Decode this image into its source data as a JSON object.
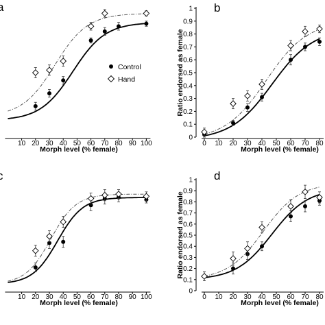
{
  "chart_data": [
    {
      "panel": "a",
      "type": "scatter",
      "xlabel": "Morph level (% female)",
      "ylabel": "",
      "xticks": [
        "10",
        "20",
        "30",
        "40",
        "50",
        "60",
        "70",
        "80",
        "90",
        "100"
      ],
      "yticks": [],
      "xlim": [
        0,
        100
      ],
      "ylim": [
        0,
        1
      ],
      "legend": {
        "placement": "middle-right",
        "entries": [
          "Control",
          "Hand"
        ]
      },
      "series": [
        {
          "name": "Control",
          "marker": "filled-circle",
          "x": [
            20,
            30,
            40,
            60,
            70,
            80,
            100
          ],
          "y": [
            0.24,
            0.34,
            0.44,
            0.75,
            0.82,
            0.86,
            0.88
          ],
          "err": [
            0.03,
            0.03,
            0.03,
            0.02,
            0.03,
            0.03,
            0.02
          ],
          "fit": {
            "min": 0.13,
            "max": 0.89,
            "mid": 47,
            "slope": 0.085
          }
        },
        {
          "name": "Hand",
          "marker": "open-diamond",
          "x": [
            20,
            30,
            40,
            60,
            70,
            100
          ],
          "y": [
            0.5,
            0.52,
            0.59,
            0.86,
            0.96,
            0.96
          ],
          "err": [
            0.04,
            0.04,
            0.04,
            0.03,
            0.03,
            0.02
          ],
          "fit": {
            "min": 0.16,
            "max": 0.96,
            "mid": 34,
            "slope": 0.085
          }
        }
      ]
    },
    {
      "panel": "b",
      "type": "scatter",
      "xlabel": "Morph level (% female)",
      "ylabel": "Ratio endorsed as female",
      "xticks": [
        "0",
        "10",
        "20",
        "30",
        "40",
        "50",
        "60",
        "70",
        "80"
      ],
      "yticks": [
        "0",
        "0.1",
        "0.2",
        "0.3",
        "0.4",
        "0.5",
        "0.6",
        "0.7",
        "0.8",
        "0.9",
        "1"
      ],
      "xlim": [
        0,
        80
      ],
      "ylim": [
        0,
        1
      ],
      "series": [
        {
          "name": "Control",
          "marker": "filled-circle",
          "x": [
            0,
            20,
            30,
            40,
            60,
            70,
            80
          ],
          "y": [
            0.02,
            0.11,
            0.23,
            0.31,
            0.6,
            0.7,
            0.74
          ],
          "err": [
            0.02,
            0.02,
            0.03,
            0.03,
            0.04,
            0.03,
            0.03
          ],
          "fit": {
            "min": -0.02,
            "max": 0.84,
            "mid": 47,
            "slope": 0.07
          }
        },
        {
          "name": "Hand",
          "marker": "open-diamond",
          "x": [
            0,
            20,
            30,
            40,
            60,
            70,
            80
          ],
          "y": [
            0.04,
            0.26,
            0.32,
            0.41,
            0.71,
            0.82,
            0.84
          ],
          "err": [
            0.03,
            0.04,
            0.04,
            0.04,
            0.04,
            0.04,
            0.03
          ],
          "fit": {
            "min": -0.02,
            "max": 0.9,
            "mid": 43,
            "slope": 0.07
          }
        }
      ]
    },
    {
      "panel": "c",
      "type": "scatter",
      "xlabel": "Morph level (% female)",
      "ylabel": "",
      "xticks": [
        "10",
        "20",
        "30",
        "40",
        "50",
        "60",
        "70",
        "80",
        "90",
        "100"
      ],
      "yticks": [],
      "xlim": [
        0,
        100
      ],
      "ylim": [
        0,
        1
      ],
      "series": [
        {
          "name": "Control",
          "marker": "filled-circle",
          "x": [
            20,
            30,
            40,
            60,
            70,
            80,
            100
          ],
          "y": [
            0.21,
            0.43,
            0.44,
            0.77,
            0.83,
            0.84,
            0.82
          ],
          "err": [
            0.04,
            0.05,
            0.05,
            0.05,
            0.05,
            0.04,
            0.03
          ],
          "fit": {
            "min": 0.06,
            "max": 0.84,
            "mid": 36,
            "slope": 0.11
          }
        },
        {
          "name": "Hand",
          "marker": "open-diamond",
          "x": [
            20,
            30,
            40,
            60,
            70,
            80,
            100
          ],
          "y": [
            0.36,
            0.49,
            0.62,
            0.83,
            0.86,
            0.87,
            0.85
          ],
          "err": [
            0.05,
            0.05,
            0.05,
            0.05,
            0.05,
            0.04,
            0.04
          ],
          "fit": {
            "min": 0.06,
            "max": 0.87,
            "mid": 31,
            "slope": 0.11
          }
        }
      ]
    },
    {
      "panel": "d",
      "type": "scatter",
      "xlabel": "Morph level (% female)",
      "ylabel": "Ratio endorsed as female",
      "xticks": [
        "0",
        "10",
        "20",
        "30",
        "40",
        "50",
        "60",
        "70",
        "80"
      ],
      "yticks": [
        "0",
        "0.1",
        "0.2",
        "0.3",
        "0.4",
        "0.5",
        "0.6",
        "0.7",
        "0.8",
        "0.9",
        "1"
      ],
      "xlim": [
        0,
        80
      ],
      "ylim": [
        0,
        1
      ],
      "series": [
        {
          "name": "Control",
          "marker": "filled-circle",
          "x": [
            0,
            20,
            30,
            40,
            60,
            70,
            80
          ],
          "y": [
            0.13,
            0.2,
            0.33,
            0.4,
            0.67,
            0.76,
            0.81
          ],
          "err": [
            0.04,
            0.05,
            0.05,
            0.04,
            0.05,
            0.05,
            0.04
          ],
          "fit": {
            "min": 0.1,
            "max": 0.92,
            "mid": 47,
            "slope": 0.08
          }
        },
        {
          "name": "Hand",
          "marker": "open-diamond",
          "x": [
            0,
            20,
            30,
            40,
            60,
            70,
            80
          ],
          "y": [
            0.13,
            0.29,
            0.38,
            0.57,
            0.76,
            0.89,
            0.84
          ],
          "err": [
            0.04,
            0.06,
            0.06,
            0.05,
            0.06,
            0.06,
            0.05
          ],
          "fit": {
            "min": 0.1,
            "max": 0.97,
            "mid": 41,
            "slope": 0.08
          }
        }
      ]
    }
  ]
}
